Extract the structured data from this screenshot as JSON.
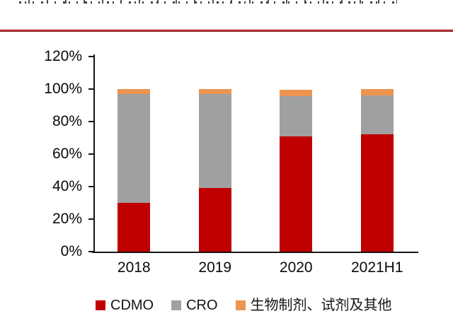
{
  "page": {
    "divider_color": "#b13434",
    "background": "#ffffff"
  },
  "chart_data": {
    "type": "bar",
    "stacked": true,
    "unit": "percent",
    "title": "",
    "xlabel": "",
    "ylabel": "",
    "categories": [
      "2018",
      "2019",
      "2020",
      "2021H1"
    ],
    "series": [
      {
        "name": "CDMO",
        "color": "#c00000",
        "values": [
          30,
          39,
          71,
          72
        ]
      },
      {
        "name": "CRO",
        "color": "#a0a0a0",
        "values": [
          67,
          58,
          25,
          24
        ]
      },
      {
        "name": "生物制剂、试剂及其他",
        "color": "#ed9450",
        "values": [
          3,
          3,
          4,
          4
        ]
      }
    ],
    "y_ticks": [
      "0%",
      "20%",
      "40%",
      "60%",
      "80%",
      "100%",
      "120%"
    ],
    "ylim": [
      0,
      120
    ],
    "grid": false,
    "legend_position": "bottom",
    "axis_color": "#161616"
  }
}
